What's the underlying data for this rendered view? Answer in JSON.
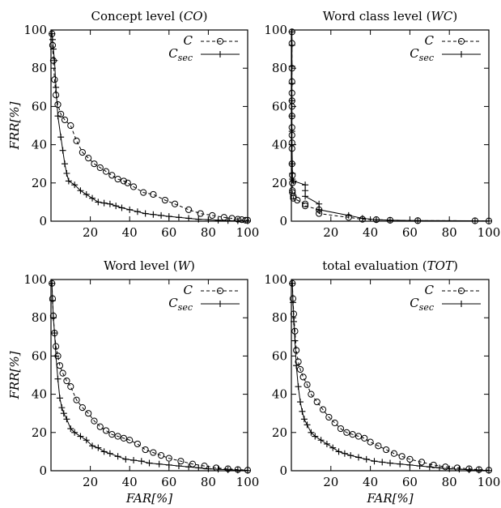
{
  "chart_data": [
    {
      "type": "line",
      "title": "Concept level (CO)",
      "title_main": "Concept level (",
      "title_var": "CO",
      "title_end": ")",
      "xlabel": "",
      "ylabel": "FRR[%]",
      "xlim": [
        0,
        100
      ],
      "ylim": [
        0,
        100
      ],
      "xticks": [
        "20",
        "40",
        "60",
        "80",
        "100"
      ],
      "yticks": [
        "0",
        "20",
        "40",
        "60",
        "80",
        "100"
      ],
      "grid": false,
      "legend": "top-right",
      "series": [
        {
          "name": "C",
          "marker": "circle",
          "dashed": true,
          "x": [
            0.5,
            0.8,
            1.2,
            1.8,
            2.5,
            3.5,
            5,
            7,
            10,
            13,
            16,
            19,
            22,
            25,
            28,
            31,
            34,
            37,
            39,
            42,
            47,
            52,
            58,
            63,
            70,
            76,
            82,
            88,
            92,
            95,
            97,
            99,
            100
          ],
          "y": [
            98,
            92,
            84,
            74,
            66,
            61,
            56,
            53,
            50,
            42,
            36,
            33,
            30,
            28,
            26,
            24,
            22,
            21,
            20,
            18,
            15,
            14,
            11,
            9,
            6,
            4,
            3,
            2,
            1.5,
            1,
            0.8,
            0.5,
            0.5
          ]
        },
        {
          "name": "C_sec",
          "marker": "plus",
          "dashed": false,
          "x": [
            0.5,
            0.8,
            1.2,
            1.8,
            2.5,
            3.5,
            5,
            6,
            7,
            8,
            9,
            12,
            15,
            18,
            21,
            24,
            27,
            30,
            33,
            36,
            40,
            44,
            48,
            52,
            56,
            60,
            65,
            70,
            75,
            80,
            85,
            90,
            95,
            100
          ],
          "y": [
            98,
            95,
            90,
            84,
            70,
            55,
            44,
            37,
            30,
            25,
            21,
            19,
            16,
            14,
            12,
            10,
            9.5,
            9,
            8,
            7,
            6,
            5,
            4,
            3.5,
            3,
            2.5,
            2,
            1.5,
            1,
            0.8,
            0.5,
            0.3,
            0.2,
            0.1
          ]
        }
      ]
    },
    {
      "type": "line",
      "title": "Word class level (WC)",
      "title_main": "Word class level (",
      "title_var": "WC",
      "title_end": ")",
      "xlabel": "",
      "ylabel": "",
      "xlim": [
        0,
        100
      ],
      "ylim": [
        0,
        100
      ],
      "xticks": [
        "20",
        "40",
        "60",
        "80",
        "100"
      ],
      "yticks": [
        "0",
        "20",
        "40",
        "60",
        "80",
        "100"
      ],
      "grid": false,
      "legend": "top-right",
      "series": [
        {
          "name": "C",
          "marker": "circle",
          "dashed": true,
          "x": [
            0.3,
            0.3,
            0.3,
            0.3,
            0.3,
            0.3,
            0.3,
            0.3,
            0.3,
            0.3,
            0.3,
            0.3,
            0.3,
            0.5,
            0.5,
            0.5,
            0.5,
            1,
            1,
            3,
            7,
            7,
            14,
            14,
            29,
            36,
            43,
            50,
            64,
            93,
            100
          ],
          "y": [
            99,
            93,
            80,
            73,
            67,
            63,
            60,
            55,
            49,
            45,
            41,
            38,
            30,
            24,
            20,
            16,
            15,
            13,
            12,
            11,
            9,
            8,
            6,
            4,
            2,
            1,
            0.8,
            0.5,
            0.3,
            0.2,
            0.1
          ]
        },
        {
          "name": "C_sec",
          "marker": "plus",
          "dashed": false,
          "x": [
            0.3,
            0.3,
            0.3,
            0.3,
            0.3,
            0.3,
            0.3,
            0.3,
            0.5,
            0.5,
            0.5,
            1,
            7,
            7,
            7,
            14,
            14,
            29,
            36,
            43,
            50,
            64,
            93,
            100
          ],
          "y": [
            99,
            92,
            81,
            72,
            63,
            55,
            47,
            40,
            30,
            25,
            22,
            21,
            19,
            16,
            13,
            9,
            6,
            3,
            1.5,
            0.8,
            0.5,
            0.3,
            0.2,
            0.1
          ]
        }
      ]
    },
    {
      "type": "line",
      "title": "Word level (W)",
      "title_main": "Word level (",
      "title_var": "W",
      "title_end": ")",
      "xlabel": "FAR[%]",
      "ylabel": "FRR[%]",
      "xlim": [
        0,
        100
      ],
      "ylim": [
        0,
        100
      ],
      "xticks": [
        "20",
        "40",
        "60",
        "80",
        "100"
      ],
      "yticks": [
        "0",
        "20",
        "40",
        "60",
        "80",
        "100"
      ],
      "grid": false,
      "legend": "top-right",
      "series": [
        {
          "name": "C",
          "marker": "circle",
          "dashed": true,
          "x": [
            0.5,
            0.8,
            1.2,
            1.8,
            2.5,
            3.5,
            4.5,
            6,
            8,
            10,
            13,
            16,
            19,
            22,
            25,
            28,
            31,
            34,
            37,
            40,
            44,
            48,
            52,
            56,
            60,
            66,
            72,
            78,
            84,
            90,
            95,
            100
          ],
          "y": [
            98,
            90,
            81,
            72,
            65,
            60,
            55,
            51,
            47,
            44,
            37,
            33,
            30,
            26,
            23,
            21,
            19,
            18,
            17,
            16,
            14,
            11,
            9.5,
            8,
            6.5,
            5,
            3.5,
            2.5,
            1.5,
            1,
            0.6,
            0.3
          ]
        },
        {
          "name": "C_sec",
          "marker": "plus",
          "dashed": false,
          "x": [
            0.5,
            0.8,
            1.2,
            1.8,
            2.5,
            3.5,
            4.5,
            5.5,
            6.5,
            8,
            10,
            12,
            15,
            18,
            21,
            24,
            27,
            30,
            34,
            38,
            42,
            46,
            50,
            55,
            60,
            65,
            70,
            75,
            80,
            85,
            90,
            95,
            100
          ],
          "y": [
            98,
            89,
            80,
            72,
            60,
            48,
            38,
            33,
            30,
            27,
            22,
            20,
            18,
            16,
            13,
            12,
            10,
            9,
            7.5,
            6,
            5.5,
            5,
            4,
            3.5,
            3,
            2.5,
            2,
            1.5,
            1,
            0.8,
            0.5,
            0.3,
            0.1
          ]
        }
      ]
    },
    {
      "type": "line",
      "title": "total evaluation (TOT)",
      "title_main": "total evaluation (",
      "title_var": "TOT",
      "title_end": ")",
      "xlabel": "FAR[%]",
      "ylabel": "",
      "xlim": [
        0,
        100
      ],
      "ylim": [
        0,
        100
      ],
      "xticks": [
        "20",
        "40",
        "60",
        "80",
        "100"
      ],
      "yticks": [
        "0",
        "20",
        "40",
        "60",
        "80",
        "100"
      ],
      "grid": false,
      "legend": "top-right",
      "series": [
        {
          "name": "C",
          "marker": "circle",
          "dashed": true,
          "x": [
            0.5,
            0.8,
            1.2,
            1.8,
            2.5,
            3.5,
            4.5,
            6,
            8,
            10,
            13,
            16,
            19,
            22,
            25,
            28,
            31,
            34,
            37,
            40,
            44,
            48,
            52,
            56,
            60,
            66,
            72,
            78,
            84,
            90,
            95,
            100
          ],
          "y": [
            98,
            90,
            82,
            73,
            63,
            57,
            53,
            49,
            45,
            40,
            36,
            32,
            28,
            25,
            22,
            20,
            19,
            18,
            17,
            15,
            13,
            11,
            9,
            7.5,
            6,
            4.5,
            3,
            2,
            1.5,
            1,
            0.6,
            0.3
          ]
        },
        {
          "name": "C_sec",
          "marker": "plus",
          "dashed": false,
          "x": [
            0.5,
            0.8,
            1.2,
            1.8,
            2.5,
            3.5,
            4.5,
            5.5,
            6.5,
            8,
            10,
            12,
            15,
            18,
            21,
            24,
            27,
            30,
            34,
            38,
            42,
            46,
            50,
            55,
            60,
            65,
            70,
            75,
            80,
            85,
            90,
            95,
            100
          ],
          "y": [
            98,
            88,
            78,
            68,
            55,
            44,
            36,
            31,
            27,
            24,
            20,
            18,
            16,
            14,
            12,
            10,
            9,
            8,
            7,
            6,
            5,
            4.5,
            4,
            3.5,
            3,
            2.5,
            2,
            1.5,
            1,
            0.8,
            0.5,
            0.3,
            0.1
          ]
        }
      ]
    }
  ]
}
